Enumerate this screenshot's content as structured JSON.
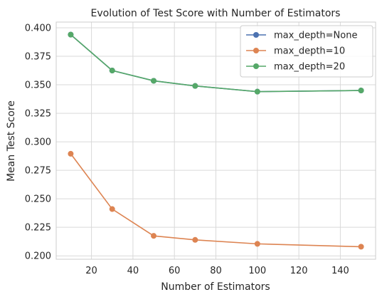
{
  "chart_data": {
    "type": "line",
    "title": "Evolution of Test Score with Number of Estimators",
    "xlabel": "Number of Estimators",
    "ylabel": "Mean Test Score",
    "x": [
      10,
      30,
      50,
      70,
      100,
      150
    ],
    "xlim": [
      3,
      157
    ],
    "ylim": [
      0.197,
      0.405
    ],
    "xticks": [
      20,
      40,
      60,
      80,
      100,
      120,
      140
    ],
    "yticks": [
      0.2,
      0.225,
      0.25,
      0.275,
      0.3,
      0.325,
      0.35,
      0.375,
      0.4
    ],
    "ytick_labels": [
      "0.200",
      "0.225",
      "0.250",
      "0.275",
      "0.300",
      "0.325",
      "0.350",
      "0.375",
      "0.400"
    ],
    "grid": true,
    "legend_position": "top-right",
    "series": [
      {
        "name": "max_depth=None",
        "color": "#4c72b0",
        "values": [
          0.394,
          0.3625,
          0.3535,
          0.349,
          0.344,
          0.345
        ]
      },
      {
        "name": "max_depth=10",
        "color": "#dd8452",
        "values": [
          0.2895,
          0.241,
          0.2175,
          0.214,
          0.2105,
          0.208
        ]
      },
      {
        "name": "max_depth=20",
        "color": "#55a868",
        "values": [
          0.394,
          0.3625,
          0.3535,
          0.349,
          0.344,
          0.345
        ]
      }
    ]
  }
}
